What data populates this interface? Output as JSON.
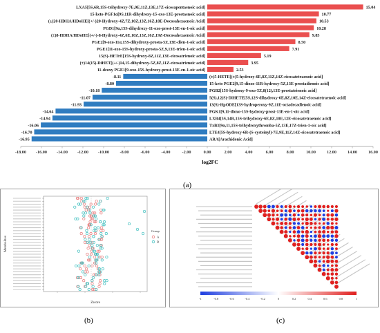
{
  "chart_data": [
    {
      "panel": "(a)",
      "type": "bar",
      "orientation": "horizontal",
      "xlabel": "log2FC",
      "xlim": [
        -18,
        16
      ],
      "xticks": [
        "-18.00",
        "-16.00",
        "-14.00",
        "-12.00",
        "-10.00",
        "-8.00",
        "-6.00",
        "-4.00",
        "-2.00",
        "0.00",
        "2.00",
        "4.00",
        "6.00",
        "8.00",
        "10.00",
        "12.00",
        "14.00",
        "16.00"
      ],
      "up_color": "#ea4f4f",
      "down_color": "#2f7cc0",
      "bars": [
        {
          "label": "LXA5[5S,6R,15S-trihydroxy-7E,9E,11Z,13E,17Z-eicosapentaenoic acid]",
          "value": 15.04,
          "value_label": "15.04"
        },
        {
          "label": "15-keto-PGF1α[9S,11R-dihydroxy-15-oxo-13E-prostaenoic acid]",
          "value": 10.77,
          "value_label": "10.77"
        },
        {
          "label": "(±)20-HDHA/HDoHE[(+/-)20-Hydroxy-4Z,7Z,10Z,13Z,16Z,18E-Docosahexaenoic Acid]",
          "value": 10.53,
          "value_label": "10.53"
        },
        {
          "label": "PGD1[9α,15S-dihydroxy-11-oxo-prost-13E-en-1-oic acid]",
          "value": 10.28,
          "value_label": "10.28"
        },
        {
          "label": "(±)8-HDHA/HDoHE[(+/-)-8-Hydroxy-4Z,6E,10Z,13Z,16Z,19Z-Docosahexaenoic Acid]",
          "value": 9.85,
          "value_label": "9.85"
        },
        {
          "label": "PGE2[9-oxo-11α,15S-dihydroxy-prosta-5Z,13E-dien-1-oic acid]",
          "value": 8.5,
          "value_label": "8.50"
        },
        {
          "label": "PGE1[11-oxo-15S-hydroxy-prosta-5Z,9,13E-trien-1-oic acid]",
          "value": 7.91,
          "value_label": "7.91"
        },
        {
          "label": "15(S)-HETrE[15S-hydroxy-8Z,11Z,13E-eicosatrienoic acid]",
          "value": 5.19,
          "value_label": "5.19"
        },
        {
          "label": "(±)14(15)-DiHET[(+/-)14,15-dihydroxy-5Z,8Z,11Z-eicosatrienoic acid]",
          "value": 3.95,
          "value_label": "3.95"
        },
        {
          "label": "11-deoxy PGE1[9-oxo-15S-hydroxy-prost-13E-en-1-oic acid]",
          "value": 2.53,
          "value_label": "2.53"
        },
        {
          "label": "(±)5-HETE[(±)5-hydroxy-6E,8Z,11Z,14Z-eicosatetraenoic acid]",
          "value": -8.11,
          "value_label": "-8.11"
        },
        {
          "label": "15-keto PGE2[9,15-dioxo-11R-hydroxy-5Z,13E-prostadienoic acid]",
          "value": -8.8,
          "value_label": "-8.80"
        },
        {
          "label": "PGB2[15S-hydroxy-9-oxo-5Z,8(12),13E-prostatrienoic acid]",
          "value": -10.18,
          "value_label": "-10.18"
        },
        {
          "label": "5(S),12(S)-DiHETE[5S,12S-dihydroxy-6E,8Z,10E,14Z-eicosatetraenoic acid]",
          "value": -11.07,
          "value_label": "-11.07"
        },
        {
          "label": "13(S)-HpODE[13S-hydroperoxy-9Z,11E-octadecadienoic acid]",
          "value": -11.93,
          "value_label": "-11.93"
        },
        {
          "label": "PGK1[9,11-dioxo-15S-hydroxy-prost-13E-en-1-oic acid]",
          "value": -14.64,
          "value_label": "-14.64"
        },
        {
          "label": "LXB4[5S,14R,15S-trihydroxy-6E,8Z,10E,12E-eicosatetraenoic acid]",
          "value": -14.94,
          "value_label": "-14.94"
        },
        {
          "label": "TxB3[9α,11,15S-trihydroxythromba-5Z,13E,17Z-trien-1-oic acid]",
          "value": -16.06,
          "value_label": "-16.06"
        },
        {
          "label": "LTE4[5S-hydroxy-6R-(S-cysteinyl)-7E,9E,11Z,14Z-eicosatetraenoic acid]",
          "value": -16.7,
          "value_label": "-16.70"
        },
        {
          "label": "ARA[Arachidonic Acid]",
          "value": -16.95,
          "value_label": "-16.95"
        }
      ]
    },
    {
      "panel": "(b)",
      "type": "scatter",
      "xlabel": "Zscore",
      "ylabel": "Metabolites",
      "legend_title": "Group",
      "legend_entries": [
        "A",
        "B"
      ],
      "legend_position": "right",
      "series_colors": [
        "#e77a7a",
        "#3fbfbf"
      ],
      "note": "Per-metabolite Z-score dot plot; row labels are illegible at this resolution."
    },
    {
      "panel": "(c)",
      "type": "heatmap",
      "layout": "lower-triangular correlation matrix",
      "color_scale_ticks": [
        "-1",
        "-0.8",
        "-0.6",
        "-0.4",
        "-0.2",
        "0",
        "0.2",
        "0.4",
        "0.6",
        "0.8",
        "1"
      ],
      "colors": {
        "negative": "#1f3fe0",
        "positive": "#e0201f"
      },
      "note": "Correlation circles between differential metabolites; labels illegible at this resolution."
    }
  ],
  "labels": {
    "panel_a": "(a)",
    "panel_b": "(b)",
    "panel_c": "(c)"
  }
}
